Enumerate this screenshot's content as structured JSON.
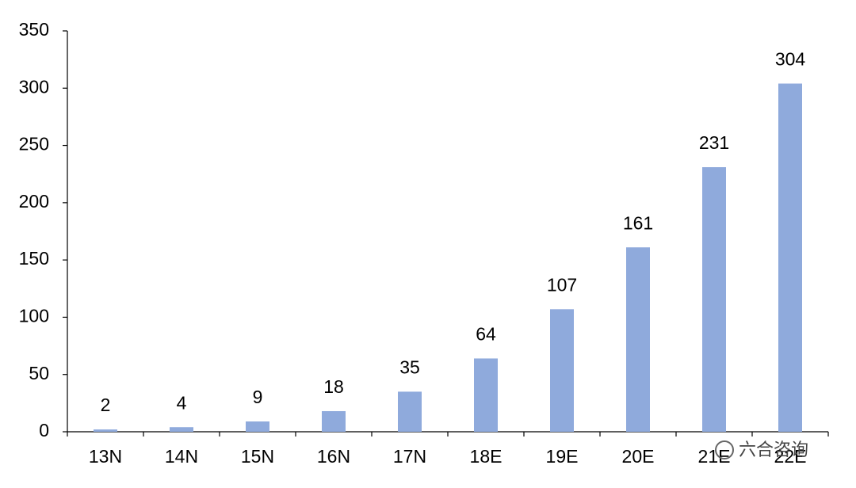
{
  "chart_data": {
    "type": "bar",
    "categories": [
      "13N",
      "14N",
      "15N",
      "16N",
      "17N",
      "18E",
      "19E",
      "20E",
      "21E",
      "22E"
    ],
    "values": [
      2,
      4,
      9,
      18,
      35,
      64,
      107,
      161,
      231,
      304
    ],
    "color": "#8faadc",
    "ylim": [
      0,
      350
    ],
    "yticks": [
      0,
      50,
      100,
      150,
      200,
      250,
      300,
      350
    ],
    "grid": false,
    "watermark": "六合咨询"
  }
}
